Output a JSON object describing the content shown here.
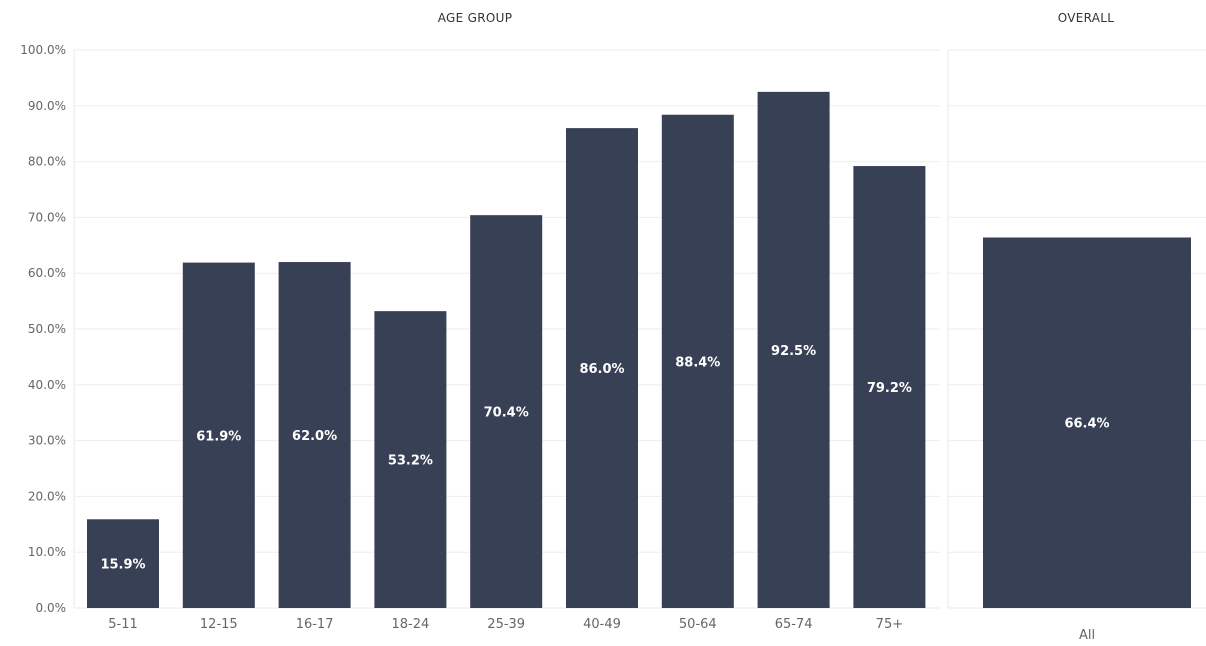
{
  "colors": {
    "bar": "#374055",
    "grid": "#eeeeee",
    "panel_border": "#e8e8e8",
    "axis_text": "#666666",
    "data_label": "#ffffff"
  },
  "chart_data": [
    {
      "type": "bar",
      "title": "AGE GROUP",
      "categories": [
        "5-11",
        "12-15",
        "16-17",
        "18-24",
        "25-39",
        "40-49",
        "50-64",
        "65-74",
        "75+"
      ],
      "values": [
        15.9,
        61.9,
        62.0,
        53.2,
        70.4,
        86.0,
        88.4,
        92.5,
        79.2
      ],
      "labels": [
        "15.9%",
        "61.9%",
        "62.0%",
        "53.2%",
        "70.4%",
        "86.0%",
        "88.4%",
        "92.5%",
        "79.2%"
      ],
      "ylim": [
        0,
        100
      ],
      "yticks": [
        0,
        10,
        20,
        30,
        40,
        50,
        60,
        70,
        80,
        90,
        100
      ],
      "ytick_labels": [
        "0.0%",
        "10.0%",
        "20.0%",
        "30.0%",
        "40.0%",
        "50.0%",
        "60.0%",
        "70.0%",
        "80.0%",
        "90.0%",
        "100.0%"
      ],
      "grid": true,
      "legend": "none"
    },
    {
      "type": "bar",
      "title": "OVERALL",
      "categories": [
        "All"
      ],
      "values": [
        66.4
      ],
      "labels": [
        "66.4%"
      ],
      "ylim": [
        0,
        100
      ],
      "grid": true,
      "legend": "none"
    }
  ]
}
